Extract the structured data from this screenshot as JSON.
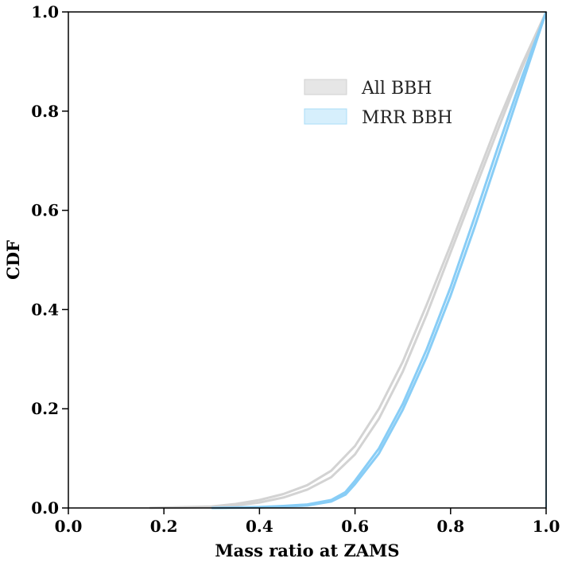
{
  "chart_data": {
    "type": "line",
    "title": "",
    "xlabel": "Mass ratio at ZAMS",
    "ylabel": "CDF",
    "xlim": [
      0.0,
      1.0
    ],
    "ylim": [
      0.0,
      1.0
    ],
    "xticks": [
      "0.0",
      "0.2",
      "0.4",
      "0.6",
      "0.8",
      "1.0"
    ],
    "yticks": [
      "0.0",
      "0.2",
      "0.4",
      "0.6",
      "0.8",
      "1.0"
    ],
    "grid": false,
    "legend_position": "upper-center-right",
    "legend": [
      {
        "label": "All BBH",
        "color": "#e6e6e6",
        "border": "#d0d0d0"
      },
      {
        "label": "MRR BBH",
        "color": "#d6effc",
        "border": "#a9dcf7"
      }
    ],
    "series": [
      {
        "group": "All BBH",
        "color": "#d3d3d3",
        "x": [
          0.17,
          0.3,
          0.35,
          0.4,
          0.45,
          0.5,
          0.55,
          0.6,
          0.65,
          0.7,
          0.75,
          0.8,
          0.85,
          0.9,
          0.95,
          1.0
        ],
        "y": [
          0.0,
          0.003,
          0.008,
          0.016,
          0.028,
          0.046,
          0.075,
          0.125,
          0.2,
          0.295,
          0.41,
          0.53,
          0.655,
          0.78,
          0.895,
          1.0
        ]
      },
      {
        "group": "All BBH",
        "color": "#d3d3d3",
        "x": [
          0.2,
          0.3,
          0.35,
          0.4,
          0.45,
          0.5,
          0.55,
          0.6,
          0.65,
          0.7,
          0.75,
          0.8,
          0.85,
          0.9,
          0.95,
          1.0
        ],
        "y": [
          0.0,
          0.002,
          0.005,
          0.011,
          0.021,
          0.037,
          0.062,
          0.108,
          0.18,
          0.275,
          0.39,
          0.515,
          0.64,
          0.765,
          0.888,
          1.0
        ]
      },
      {
        "group": "MRR BBH",
        "color": "#88cdf6",
        "x": [
          0.3,
          0.4,
          0.45,
          0.5,
          0.55,
          0.58,
          0.6,
          0.65,
          0.7,
          0.75,
          0.8,
          0.85,
          0.9,
          0.95,
          1.0
        ],
        "y": [
          0.0,
          0.002,
          0.004,
          0.007,
          0.016,
          0.032,
          0.055,
          0.12,
          0.21,
          0.32,
          0.445,
          0.585,
          0.73,
          0.87,
          1.0
        ]
      },
      {
        "group": "MRR BBH",
        "color": "#88cdf6",
        "x": [
          0.3,
          0.4,
          0.45,
          0.5,
          0.55,
          0.58,
          0.6,
          0.65,
          0.7,
          0.75,
          0.8,
          0.85,
          0.9,
          0.95,
          1.0
        ],
        "y": [
          0.0,
          0.001,
          0.003,
          0.005,
          0.013,
          0.027,
          0.048,
          0.11,
          0.198,
          0.305,
          0.428,
          0.565,
          0.71,
          0.855,
          1.0
        ]
      }
    ]
  }
}
